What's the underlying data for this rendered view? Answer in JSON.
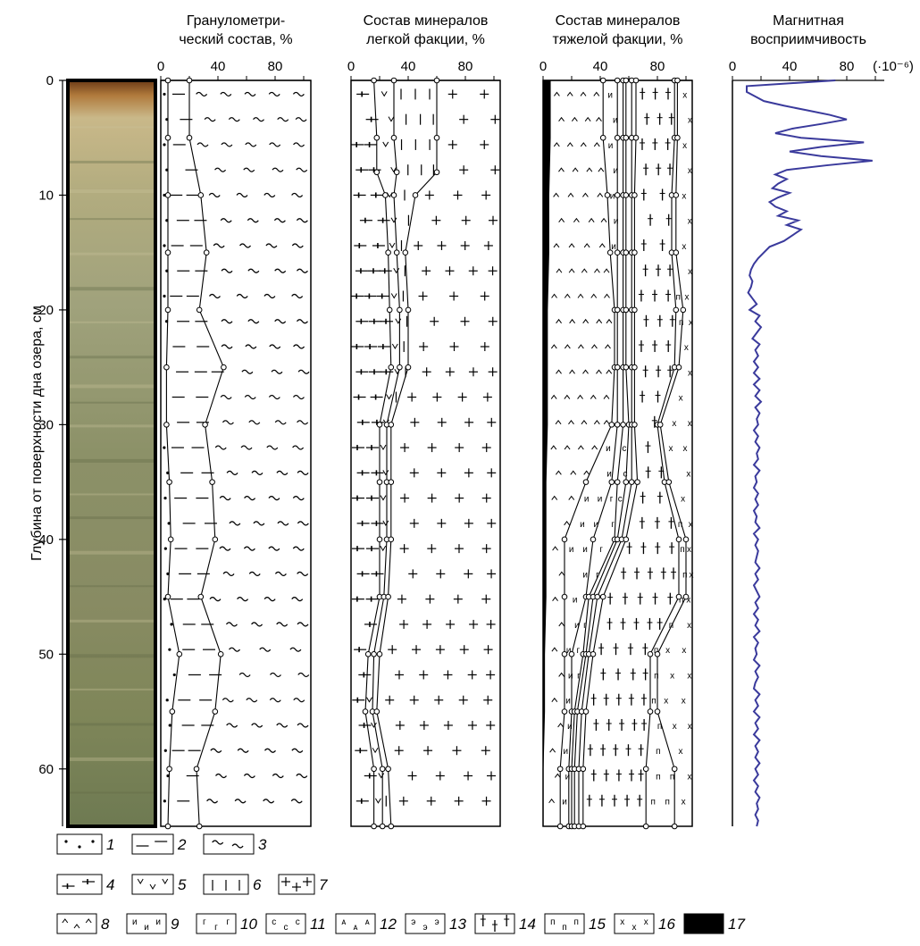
{
  "chart_data": {
    "type": "line",
    "y_axis": {
      "label": "Глубина от поверхности дна озера, см",
      "range": [
        0,
        65
      ],
      "ticks": [
        "0",
        "10",
        "20",
        "30",
        "40",
        "50",
        "60"
      ]
    },
    "core_photo": {
      "label": ""
    },
    "panels": [
      {
        "id": "grain",
        "title_lines": [
          "Гранулометри-",
          "ческий состав, %"
        ],
        "x_ticks": [
          "0",
          "40",
          "80"
        ],
        "xlim": [
          0,
          100
        ],
        "depths": [
          0,
          5,
          10,
          15,
          20,
          25,
          30,
          35,
          40,
          45,
          50,
          55,
          60,
          65
        ],
        "boundaries": [
          {
            "name": "1/2",
            "values": [
              5,
              5,
              5,
              5,
              5,
              4,
              4,
              6,
              7,
              5,
              13,
              8,
              6,
              5
            ]
          },
          {
            "name": "2/3",
            "values": [
              20,
              20,
              28,
              32,
              27,
              44,
              31,
              36,
              38,
              28,
              42,
              38,
              25,
              27
            ]
          }
        ],
        "region_patterns": [
          "1",
          "2",
          "3"
        ]
      },
      {
        "id": "light",
        "title_lines": [
          "Состав минералов",
          "легкой факции, %"
        ],
        "x_ticks": [
          "0",
          "40",
          "80"
        ],
        "xlim": [
          0,
          100
        ],
        "depths": [
          0,
          5,
          8,
          10,
          15,
          20,
          25,
          30,
          35,
          40,
          45,
          50,
          55,
          60,
          65
        ],
        "boundaries": [
          {
            "name": "4/5",
            "values": [
              16,
              18,
              18,
              24,
              26,
              27,
              28,
              20,
              20,
              20,
              20,
              12,
              10,
              16,
              16
            ]
          },
          {
            "name": "5/6",
            "values": [
              30,
              30,
              32,
              30,
              32,
              34,
              34,
              25,
              25,
              25,
              23,
              16,
              15,
              22,
              22
            ]
          },
          {
            "name": "6/7",
            "values": [
              60,
              60,
              60,
              45,
              38,
              40,
              40,
              28,
              28,
              28,
              26,
              20,
              18,
              26,
              28
            ]
          }
        ],
        "region_patterns": [
          "4",
          "5",
          "6",
          "7"
        ]
      },
      {
        "id": "heavy",
        "title_lines": [
          "Состав минералов",
          "тяжелой факции, %"
        ],
        "x_ticks": [
          "0",
          "40",
          "80"
        ],
        "xlim": [
          0,
          100
        ],
        "depths": [
          0,
          5,
          10,
          15,
          20,
          25,
          30,
          35,
          40,
          45,
          50,
          55,
          60,
          65
        ],
        "boundaries": [
          {
            "name": "17/8",
            "values": [
              5,
              5,
              4,
              4,
              3,
              3,
              3,
              2,
              2,
              2,
              1,
              1,
              0,
              0
            ]
          },
          {
            "name": "8/9",
            "values": [
              42,
              42,
              45,
              47,
              50,
              50,
              48,
              30,
              15,
              15,
              15,
              15,
              12,
              12
            ]
          },
          {
            "name": "9/10",
            "values": [
              52,
              52,
              52,
              52,
              52,
              52,
              52,
              48,
              35,
              30,
              20,
              20,
              18,
              18
            ]
          },
          {
            "name": "10/11",
            "values": [
              56,
              56,
              56,
              56,
              56,
              56,
              56,
              52,
              50,
              32,
              28,
              22,
              20,
              20
            ]
          },
          {
            "name": "11/12",
            "values": [
              58,
              58,
              58,
              58,
              58,
              58,
              60,
              58,
              52,
              35,
              30,
              24,
              22,
              22
            ]
          },
          {
            "name": "12/13",
            "values": [
              62,
              62,
              62,
              62,
              62,
              62,
              62,
              62,
              55,
              38,
              32,
              27,
              25,
              25
            ]
          },
          {
            "name": "13/14",
            "values": [
              65,
              65,
              64,
              64,
              64,
              64,
              64,
              66,
              58,
              42,
              35,
              30,
              28,
              28
            ]
          },
          {
            "name": "14/15",
            "values": [
              92,
              92,
              90,
              90,
              93,
              92,
              80,
              85,
              95,
              95,
              75,
              75,
              72,
              72
            ]
          },
          {
            "name": "15/16",
            "values": [
              94,
              94,
              93,
              93,
              98,
              95,
              82,
              88,
              100,
              100,
              80,
              80,
              92,
              92
            ]
          }
        ],
        "region_patterns": [
          "17",
          "8",
          "9",
          "10",
          "11",
          "12",
          "13",
          "14",
          "15",
          "16"
        ]
      },
      {
        "id": "magnetic",
        "title_lines": [
          "Магнитная",
          "восприимчивость"
        ],
        "x_ticks": [
          "0",
          "40",
          "80"
        ],
        "x_unit_label": "(·10⁻⁶)",
        "xlim": [
          0,
          100
        ],
        "series": [
          {
            "name": "",
            "points": [
              [
                0,
                72
              ],
              [
                0.5,
                10
              ],
              [
                1,
                10
              ],
              [
                1.4,
                16
              ],
              [
                1.8,
                22
              ],
              [
                2.2,
                36
              ],
              [
                2.6,
                52
              ],
              [
                3,
                68
              ],
              [
                3.4,
                80
              ],
              [
                3.8,
                62
              ],
              [
                4.2,
                42
              ],
              [
                4.6,
                30
              ],
              [
                5,
                48
              ],
              [
                5.4,
                92
              ],
              [
                5.8,
                62
              ],
              [
                6.2,
                40
              ],
              [
                6.6,
                62
              ],
              [
                7,
                98
              ],
              [
                7.4,
                66
              ],
              [
                7.8,
                38
              ],
              [
                8.2,
                30
              ],
              [
                8.6,
                38
              ],
              [
                9,
                32
              ],
              [
                9.4,
                28
              ],
              [
                9.8,
                40
              ],
              [
                10.2,
                32
              ],
              [
                10.6,
                26
              ],
              [
                11,
                30
              ],
              [
                11.4,
                38
              ],
              [
                11.8,
                32
              ],
              [
                12.2,
                46
              ],
              [
                12.6,
                38
              ],
              [
                13,
                48
              ],
              [
                13.5,
                42
              ],
              [
                14,
                36
              ],
              [
                14.5,
                26
              ],
              [
                15,
                22
              ],
              [
                15.5,
                18
              ],
              [
                16,
                15
              ],
              [
                16.5,
                13
              ],
              [
                17,
                12
              ],
              [
                17.5,
                14
              ],
              [
                18,
                13
              ],
              [
                18.5,
                11
              ],
              [
                19,
                14
              ],
              [
                19.5,
                17
              ],
              [
                20,
                12
              ],
              [
                20.5,
                19
              ],
              [
                21,
                16
              ],
              [
                21.5,
                20
              ],
              [
                22,
                17
              ],
              [
                22.5,
                14
              ],
              [
                23,
                19
              ],
              [
                23.5,
                16
              ],
              [
                24,
                18
              ],
              [
                24.5,
                15
              ],
              [
                25,
                18
              ],
              [
                25.5,
                15
              ],
              [
                26,
                19
              ],
              [
                26.5,
                15
              ],
              [
                27,
                19
              ],
              [
                27.5,
                16
              ],
              [
                28,
                20
              ],
              [
                28.5,
                16
              ],
              [
                29,
                19
              ],
              [
                29.5,
                17
              ],
              [
                30,
                18
              ],
              [
                30.5,
                15
              ],
              [
                31,
                18
              ],
              [
                31.5,
                16
              ],
              [
                32,
                19
              ],
              [
                32.5,
                17
              ],
              [
                33,
                18
              ],
              [
                33.5,
                15
              ],
              [
                34,
                19
              ],
              [
                34.5,
                16
              ],
              [
                35,
                17
              ],
              [
                35.5,
                15
              ],
              [
                36,
                18
              ],
              [
                36.5,
                16
              ],
              [
                37,
                18
              ],
              [
                37.5,
                15
              ],
              [
                38,
                17
              ],
              [
                38.5,
                16
              ],
              [
                39,
                19
              ],
              [
                39.5,
                15
              ],
              [
                40,
                18
              ],
              [
                40.5,
                16
              ],
              [
                41,
                18
              ],
              [
                41.5,
                17
              ],
              [
                42,
                16
              ],
              [
                42.5,
                19
              ],
              [
                43,
                16
              ],
              [
                43.5,
                18
              ],
              [
                44,
                15
              ],
              [
                44.5,
                17
              ],
              [
                45,
                19
              ],
              [
                45.5,
                16
              ],
              [
                46,
                18
              ],
              [
                46.5,
                15
              ],
              [
                47,
                18
              ],
              [
                47.5,
                16
              ],
              [
                48,
                19
              ],
              [
                48.5,
                15
              ],
              [
                49,
                18
              ],
              [
                49.5,
                16
              ],
              [
                50,
                17
              ],
              [
                50.5,
                15
              ],
              [
                51,
                19
              ],
              [
                51.5,
                16
              ],
              [
                52,
                18
              ],
              [
                52.5,
                16
              ],
              [
                53,
                15
              ],
              [
                53.5,
                19
              ],
              [
                54,
                16
              ],
              [
                54.5,
                18
              ],
              [
                55,
                15
              ],
              [
                55.5,
                19
              ],
              [
                56,
                16
              ],
              [
                56.5,
                18
              ],
              [
                57,
                15
              ],
              [
                57.5,
                19
              ],
              [
                58,
                16
              ],
              [
                58.5,
                18
              ],
              [
                59,
                16
              ],
              [
                59.5,
                19
              ],
              [
                60,
                16
              ],
              [
                60.5,
                18
              ],
              [
                61,
                15
              ],
              [
                61.5,
                18
              ],
              [
                62,
                16
              ],
              [
                62.5,
                19
              ],
              [
                63,
                17
              ],
              [
                63.5,
                18
              ],
              [
                64,
                16
              ],
              [
                64.5,
                18
              ],
              [
                65,
                17
              ]
            ],
            "color": "#3a3a9c"
          }
        ]
      }
    ],
    "legend": [
      {
        "num": "1",
        "pattern": "dots"
      },
      {
        "num": "2",
        "pattern": "dashes"
      },
      {
        "num": "3",
        "pattern": "tildes"
      },
      {
        "num": "4",
        "pattern": "crossbars"
      },
      {
        "num": "5",
        "pattern": "v"
      },
      {
        "num": "6",
        "pattern": "bars"
      },
      {
        "num": "7",
        "pattern": "plus"
      },
      {
        "num": "8",
        "pattern": "carets"
      },
      {
        "num": "9",
        "pattern": "letter-i"
      },
      {
        "num": "10",
        "pattern": "letter-g"
      },
      {
        "num": "11",
        "pattern": "letter-s"
      },
      {
        "num": "12",
        "pattern": "letter-a"
      },
      {
        "num": "13",
        "pattern": "letter-e"
      },
      {
        "num": "14",
        "pattern": "tall-plus"
      },
      {
        "num": "15",
        "pattern": "letter-p"
      },
      {
        "num": "16",
        "pattern": "x"
      },
      {
        "num": "17",
        "pattern": "solid-black"
      }
    ],
    "colors": {
      "magnetic_line": "#3a3a9c",
      "frame": "#000000"
    }
  }
}
